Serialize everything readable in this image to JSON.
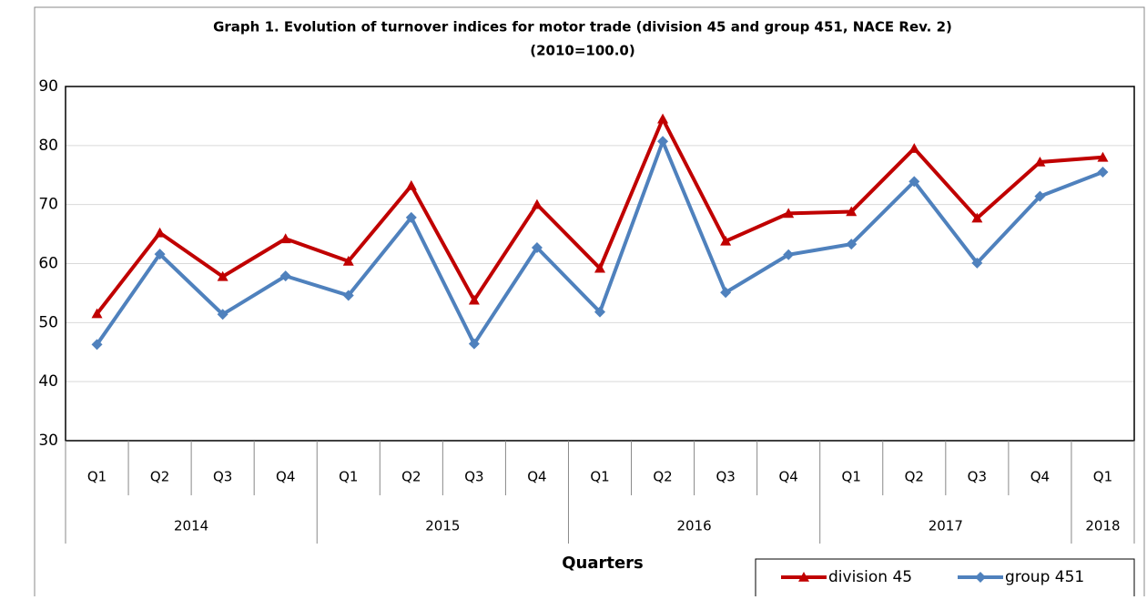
{
  "chart_data": {
    "type": "line",
    "title": "Graph 1. Evolution of turnover indices for motor trade (division 45 and group 451, NACE Rev. 2)",
    "subtitle": "(2010=100.0)",
    "x_label": "Quarters",
    "categories": [
      "Q1",
      "Q2",
      "Q3",
      "Q4",
      "Q1",
      "Q2",
      "Q3",
      "Q4",
      "Q1",
      "Q2",
      "Q3",
      "Q4",
      "Q1",
      "Q2",
      "Q3",
      "Q4",
      "Q1"
    ],
    "years": [
      "2014",
      null,
      null,
      null,
      "2015",
      null,
      null,
      null,
      "2016",
      null,
      null,
      null,
      "2017",
      null,
      null,
      null,
      "2018"
    ],
    "series": [
      {
        "name": "division 45",
        "color": "#c00000",
        "marker": "triangle",
        "values": [
          51.5,
          65.2,
          57.8,
          64.2,
          60.4,
          73.2,
          53.8,
          70.0,
          59.2,
          84.5,
          63.8,
          68.5,
          68.8,
          79.5,
          67.7,
          77.2,
          78.0
        ]
      },
      {
        "name": "group 451",
        "color": "#4f81bd",
        "marker": "diamond",
        "values": [
          46.3,
          61.6,
          51.4,
          57.9,
          54.6,
          67.8,
          46.4,
          62.7,
          51.8,
          80.7,
          55.1,
          61.5,
          63.3,
          73.9,
          60.1,
          71.4,
          75.5
        ]
      }
    ],
    "ylim": [
      30,
      90
    ],
    "yticks": [
      30,
      40,
      50,
      60,
      70,
      80,
      90
    ],
    "grid": true,
    "legend": "bottom-right"
  }
}
